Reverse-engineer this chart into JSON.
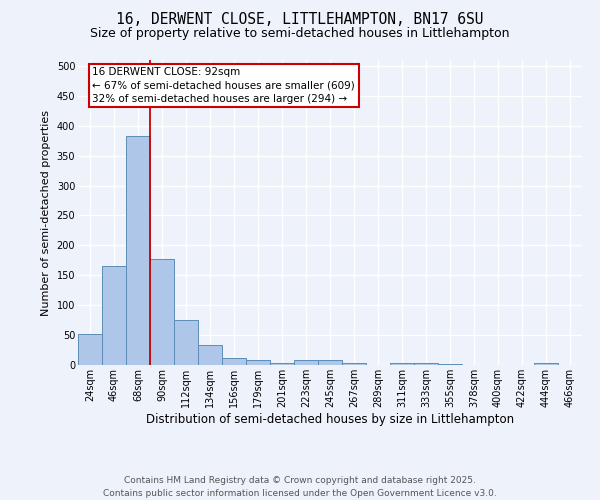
{
  "title_line1": "16, DERWENT CLOSE, LITTLEHAMPTON, BN17 6SU",
  "title_line2": "Size of property relative to semi-detached houses in Littlehampton",
  "xlabel": "Distribution of semi-detached houses by size in Littlehampton",
  "ylabel": "Number of semi-detached properties",
  "categories": [
    "24sqm",
    "46sqm",
    "68sqm",
    "90sqm",
    "112sqm",
    "134sqm",
    "156sqm",
    "179sqm",
    "201sqm",
    "223sqm",
    "245sqm",
    "267sqm",
    "289sqm",
    "311sqm",
    "333sqm",
    "355sqm",
    "378sqm",
    "400sqm",
    "422sqm",
    "444sqm",
    "466sqm"
  ],
  "values": [
    52,
    165,
    383,
    178,
    75,
    33,
    12,
    8,
    3,
    8,
    9,
    3,
    0,
    4,
    4,
    1,
    0,
    0,
    0,
    3,
    0
  ],
  "bar_color": "#aec6e8",
  "bar_edge_color": "#5b8db8",
  "bar_width": 1.0,
  "property_line_index": 3,
  "annotation_text": "16 DERWENT CLOSE: 92sqm\n← 67% of semi-detached houses are smaller (609)\n32% of semi-detached houses are larger (294) →",
  "annotation_box_color": "#ffffff",
  "annotation_box_edge_color": "#cc0000",
  "vertical_line_color": "#cc0000",
  "yticks": [
    0,
    50,
    100,
    150,
    200,
    250,
    300,
    350,
    400,
    450,
    500
  ],
  "ylim": [
    0,
    510
  ],
  "background_color": "#eef2fb",
  "grid_color": "#ffffff",
  "footer_text": "Contains HM Land Registry data © Crown copyright and database right 2025.\nContains public sector information licensed under the Open Government Licence v3.0.",
  "title_fontsize": 10.5,
  "subtitle_fontsize": 9,
  "xlabel_fontsize": 8.5,
  "ylabel_fontsize": 8,
  "tick_fontsize": 7,
  "footer_fontsize": 6.5,
  "annotation_fontsize": 7.5
}
